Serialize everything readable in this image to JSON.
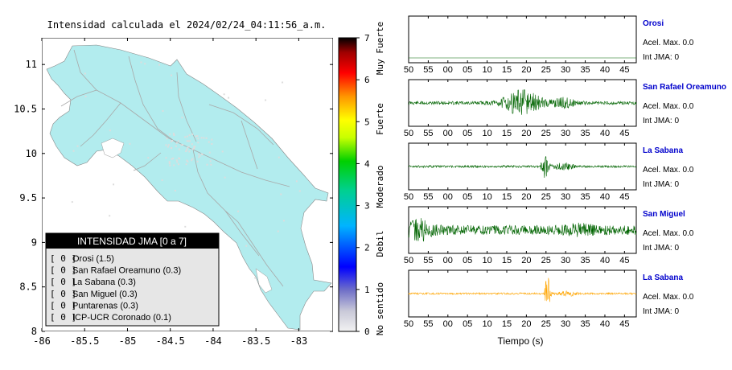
{
  "map": {
    "title": "Intensidad calculada el 2024/02/24_04:11:56_a.m.",
    "x_ticks": [
      "-86",
      "-85.5",
      "-85",
      "-84.5",
      "-84",
      "-83.5",
      "-83"
    ],
    "y_ticks": [
      "11",
      "10.5",
      "10",
      "9.5",
      "9",
      "8.5",
      "8"
    ],
    "xlim": [
      -86,
      -82.6
    ],
    "ylim": [
      8,
      11.3
    ],
    "land_color": "#b2ecee"
  },
  "colorbar": {
    "ticks": [
      "0",
      "1",
      "2",
      "3",
      "4",
      "5",
      "6",
      "7"
    ],
    "range": [
      0,
      7
    ],
    "labels": [
      "No sentido",
      "Debil",
      "Moderado",
      "Fuerte",
      "Muy Fuerte"
    ]
  },
  "legend": {
    "title": "INTENSIDAD JMA [0 a 7]",
    "items": [
      {
        "bracket": "[ 0 ]",
        "label": "Orosi (1.5)"
      },
      {
        "bracket": "[ 0 ]",
        "label": "San Rafael Oreamuno (0.3)"
      },
      {
        "bracket": "[ 0 ]",
        "label": "La Sabana (0.3)"
      },
      {
        "bracket": "[ 0 ]",
        "label": "San Miguel (0.3)"
      },
      {
        "bracket": "[ 0 ]",
        "label": "Puntarenas (0.3)"
      },
      {
        "bracket": "[ 0 ]",
        "label": "ICP-UCR Coronado (0.1)"
      }
    ]
  },
  "chart_data": [
    {
      "type": "heatmap",
      "title": "Intensidad calculada el 2024/02/24_04:11:56_a.m.",
      "xlim": [
        -86,
        -82.6
      ],
      "ylim": [
        8,
        11.3
      ],
      "x_ticks": [
        -86,
        -85.5,
        -85,
        -84.5,
        -84,
        -83.5,
        -83
      ],
      "y_ticks": [
        8,
        8.5,
        9,
        9.5,
        10,
        10.5,
        11
      ],
      "colorbar_range": [
        0,
        7
      ]
    },
    {
      "type": "line",
      "xlabel": "Tiempo (s)",
      "x_tick_labels": [
        "50",
        "55",
        "00",
        "05",
        "10",
        "15",
        "20",
        "25",
        "30",
        "35",
        "40",
        "45"
      ],
      "series": [
        {
          "name": "Orosi",
          "accel_label": "Acel. Max. 0.0",
          "int_label": "Int JMA: 0",
          "color": "#006400",
          "name_color": "#0000cc"
        },
        {
          "name": "San Rafael Oreamuno",
          "accel_label": "Acel. Max. 0.0",
          "int_label": "Int JMA: 0",
          "color": "#006400",
          "name_color": "#0000cc"
        },
        {
          "name": "La Sabana",
          "accel_label": "Acel. Max. 0.0",
          "int_label": "Int JMA: 0",
          "color": "#006400",
          "name_color": "#0000cc"
        },
        {
          "name": "San Miguel",
          "accel_label": "Acel. Max. 0.0",
          "int_label": "Int JMA: 0",
          "color": "#006400",
          "name_color": "#0000cc"
        },
        {
          "name": "La Sabana",
          "accel_label": "Acel. Max. 0.0",
          "int_label": "Int JMA: 0",
          "color": "#ffa500",
          "name_color": "#0000cc"
        }
      ]
    }
  ]
}
